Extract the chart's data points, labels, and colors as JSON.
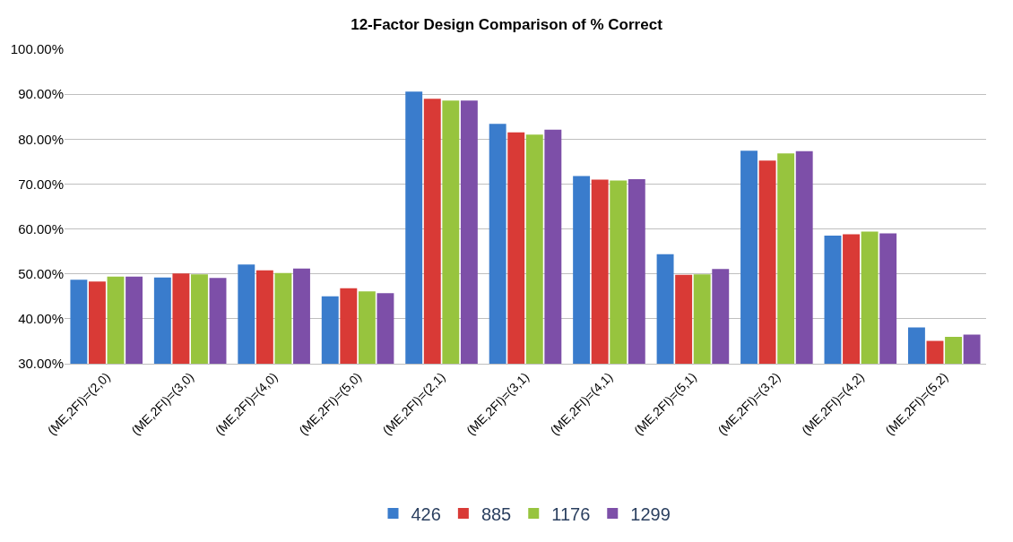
{
  "chart_data": {
    "type": "bar",
    "title": "12-Factor Design Comparison of % Correct",
    "categories": [
      "(ME,2FI)=(2,0)",
      "(ME,2FI)=(3,0)",
      "(ME,2FI)=(4,0)",
      "(ME,2FI)=(5,0)",
      "(ME,2FI)=(2,1)",
      "(ME,2FI)=(3,1)",
      "(ME,2FI)=(4,1)",
      "(ME,2FI)=(5,1)",
      "(ME,2FI)=(3,2)",
      "(ME,2FI)=(4,2)",
      "(ME,2FI)=(5,2)"
    ],
    "series": [
      {
        "name": "426",
        "color": "#3a7ccc",
        "values": [
          48.7,
          49.2,
          52.1,
          45.0,
          90.6,
          83.4,
          71.8,
          54.4,
          77.4,
          58.5,
          38.1
        ]
      },
      {
        "name": "885",
        "color": "#d93a36",
        "values": [
          48.3,
          50.1,
          50.8,
          46.8,
          89.0,
          81.5,
          71.0,
          49.8,
          75.2,
          58.8,
          35.1
        ]
      },
      {
        "name": "1176",
        "color": "#97c43e",
        "values": [
          49.4,
          49.9,
          50.2,
          46.1,
          88.6,
          81.0,
          70.8,
          49.9,
          76.8,
          59.4,
          36.0
        ]
      },
      {
        "name": "1299",
        "color": "#7d4fa8",
        "values": [
          49.4,
          49.1,
          51.2,
          45.7,
          88.6,
          82.1,
          71.1,
          51.1,
          77.3,
          59.0,
          36.5
        ]
      }
    ],
    "ylim": [
      30,
      100
    ],
    "yticks": [
      {
        "value": 30,
        "label": "30.00%"
      },
      {
        "value": 40,
        "label": "40.00%"
      },
      {
        "value": 50,
        "label": "50.00%"
      },
      {
        "value": 60,
        "label": "60.00%"
      },
      {
        "value": 70,
        "label": "70.00%"
      },
      {
        "value": 80,
        "label": "80.00%"
      },
      {
        "value": 90,
        "label": "90.00%"
      },
      {
        "value": 100,
        "label": "100.00%"
      }
    ],
    "grid": "y",
    "legend": "bottom"
  }
}
